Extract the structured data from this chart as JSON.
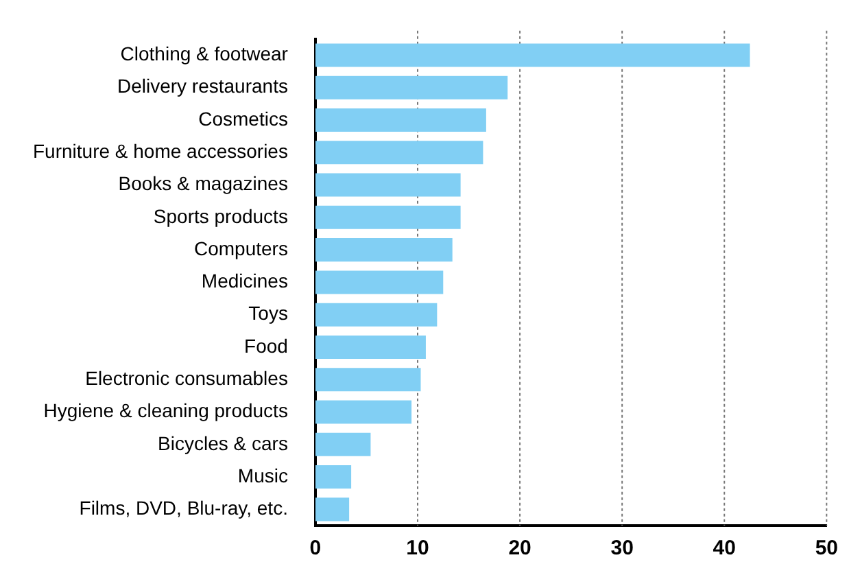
{
  "chart_data": {
    "type": "bar",
    "orientation": "horizontal",
    "categories": [
      "Clothing & footwear",
      "Delivery restaurants",
      "Cosmetics",
      "Furniture & home accessories",
      "Books & magazines",
      "Sports products",
      "Computers",
      "Medicines",
      "Toys",
      "Food",
      "Electronic consumables",
      "Hygiene & cleaning products",
      "Bicycles & cars",
      "Music",
      "Films, DVD, Blu-ray, etc."
    ],
    "values": [
      42.5,
      18.8,
      16.7,
      16.4,
      14.2,
      14.2,
      13.4,
      12.5,
      11.9,
      10.8,
      10.3,
      9.4,
      5.4,
      3.5,
      3.3
    ],
    "color": "#81cff4",
    "xlim": [
      0,
      50
    ],
    "xticks": [
      0,
      10,
      20,
      30,
      40,
      50
    ],
    "grid": "x",
    "legend": false
  }
}
